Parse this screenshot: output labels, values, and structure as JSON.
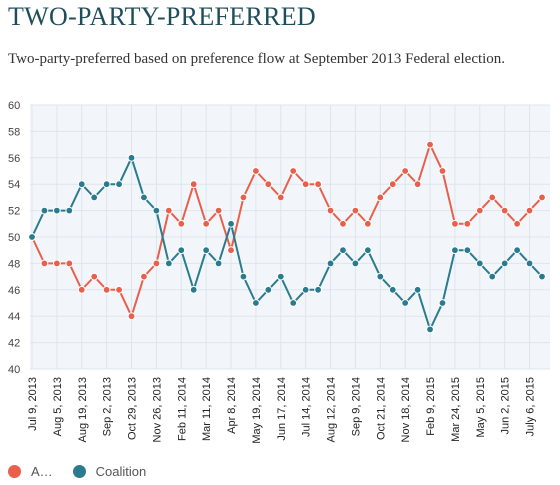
{
  "title": "TWO-PARTY-PREFERRED",
  "subtitle": "Two-party-preferred based on preference flow at September 2013 Federal election.",
  "legend": [
    {
      "label": "A…",
      "color": "#e8604c"
    },
    {
      "label": "Coalition",
      "color": "#2a7b8e"
    }
  ],
  "chart_data": {
    "type": "line",
    "ylim": [
      40,
      60
    ],
    "y_ticks": [
      "40",
      "42",
      "44",
      "46",
      "48",
      "50",
      "52",
      "54",
      "56",
      "58",
      "60"
    ],
    "x_tick_labels": [
      "Jul 9, 2013",
      "Aug 5, 2013",
      "Aug 19, 2013",
      "Sep 2, 2013",
      "Oct 29, 2013",
      "Nov 26, 2013",
      "Feb 11, 2014",
      "Mar 11, 2014",
      "Apr 8, 2014",
      "May 19, 2014",
      "Jun 17, 2014",
      "Jul 14, 2014",
      "Aug 12, 2014",
      "Sep 9, 2014",
      "Oct 21, 2014",
      "Nov 18, 2014",
      "Feb 9, 2015",
      "Mar 24, 2015",
      "May 5, 2015",
      "Jun 2, 2015",
      "July 6, 2015"
    ],
    "series": [
      {
        "name": "A…",
        "color": "#e8604c",
        "values": [
          50,
          48,
          48,
          48,
          46,
          47,
          46,
          46,
          44,
          47,
          48,
          52,
          51,
          54,
          51,
          52,
          49,
          53,
          55,
          54,
          53,
          55,
          54,
          54,
          52,
          51,
          52,
          51,
          53,
          54,
          55,
          54,
          57,
          55,
          51,
          51,
          52,
          53,
          52,
          51,
          52,
          53
        ]
      },
      {
        "name": "Coalition",
        "color": "#2a7b8e",
        "values": [
          50,
          52,
          52,
          52,
          54,
          53,
          54,
          54,
          56,
          53,
          52,
          48,
          49,
          46,
          49,
          48,
          51,
          47,
          45,
          46,
          47,
          45,
          46,
          46,
          48,
          49,
          48,
          49,
          47,
          46,
          45,
          46,
          43,
          45,
          49,
          49,
          48,
          47,
          48,
          49,
          48,
          47
        ]
      }
    ],
    "grid": true
  }
}
